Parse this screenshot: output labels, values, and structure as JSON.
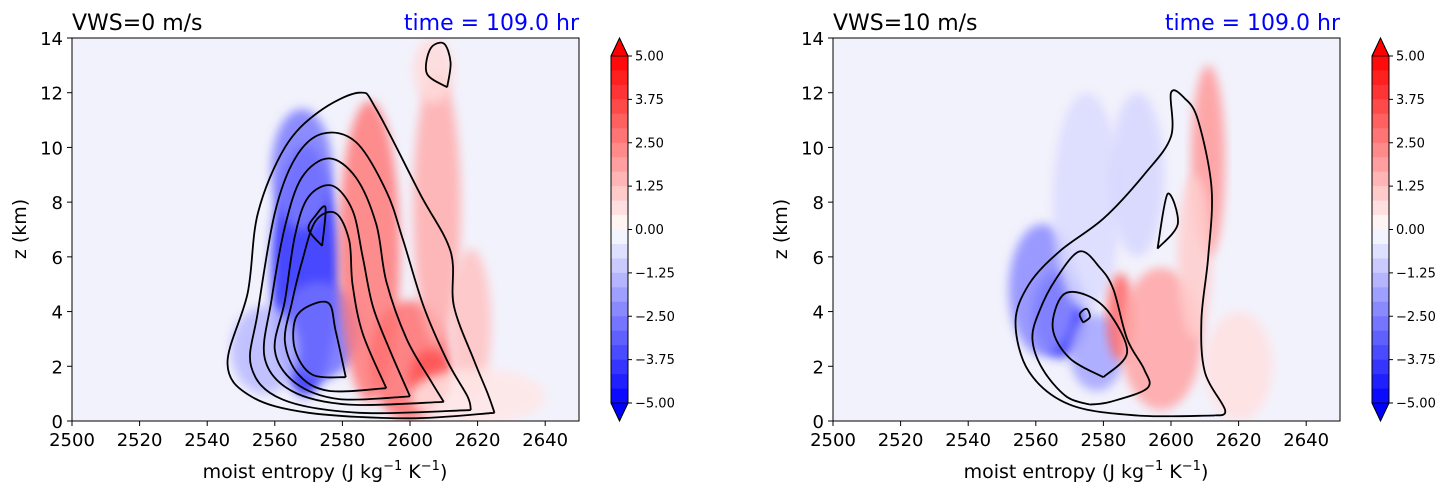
{
  "chart_data": [
    {
      "type": "contour",
      "title_left": "VWS=0 m/s",
      "title_right": "time = 109.0 hr",
      "xlabel": "moist entropy (J kg",
      "xlabel_unit_sup1": "−1",
      "xlabel_mid": " K",
      "xlabel_unit_sup2": "−1",
      "xlabel_end": ")",
      "ylabel": "z (km)",
      "xlim": [
        2500,
        2650
      ],
      "ylim": [
        0,
        14
      ],
      "xticks": [
        "2500",
        "2520",
        "2540",
        "2560",
        "2580",
        "2600",
        "2620",
        "2640"
      ],
      "yticks": [
        "0",
        "2",
        "4",
        "6",
        "8",
        "10",
        "12",
        "14"
      ],
      "colorbar_ticks": [
        "5.00",
        "3.75",
        "2.50",
        "1.25",
        "0.00",
        "−1.25",
        "−2.50",
        "−3.75",
        "−5.00"
      ],
      "colorbar_range": [
        -5,
        5
      ],
      "colormap": "bwr",
      "blobs": [
        {
          "x": 2569,
          "y": 5.5,
          "rx": 10,
          "ry": 4.6,
          "v": -4.2
        },
        {
          "x": 2573,
          "y": 3.3,
          "rx": 12,
          "ry": 1.8,
          "v": -2.8
        },
        {
          "x": 2568,
          "y": 9.2,
          "rx": 9,
          "ry": 2.2,
          "v": -2.6
        },
        {
          "x": 2557,
          "y": 2.6,
          "rx": 10,
          "ry": 1.6,
          "v": -1.4
        },
        {
          "x": 2588,
          "y": 6.2,
          "rx": 9,
          "ry": 5.5,
          "v": 2.6
        },
        {
          "x": 2600,
          "y": 2.2,
          "rx": 12,
          "ry": 2.2,
          "v": 2.8
        },
        {
          "x": 2606,
          "y": 1.6,
          "rx": 6,
          "ry": 1.0,
          "v": 3.4
        },
        {
          "x": 2608,
          "y": 7.8,
          "rx": 7,
          "ry": 5.0,
          "v": 1.6
        },
        {
          "x": 2618,
          "y": 3.5,
          "rx": 6,
          "ry": 2.8,
          "v": 1.2
        },
        {
          "x": 2607,
          "y": 12.8,
          "rx": 6,
          "ry": 1.2,
          "v": 0.7
        },
        {
          "x": 2620,
          "y": 0.9,
          "rx": 20,
          "ry": 1.0,
          "v": 0.5
        }
      ],
      "contours": [
        {
          "points": [
            [
              2625,
              0.3
            ],
            [
              2600,
              0.1
            ],
            [
              2570,
              0.3
            ],
            [
              2553,
              0.9
            ],
            [
              2546,
              2.1
            ],
            [
              2552,
              4.7
            ],
            [
              2555,
              7.6
            ],
            [
              2563,
              10.0
            ],
            [
              2573,
              11.3
            ],
            [
              2585,
              12.0
            ],
            [
              2590,
              11.4
            ],
            [
              2603,
              8.3
            ],
            [
              2612,
              6.2
            ],
            [
              2613,
              4.2
            ],
            [
              2619,
              2.2
            ],
            [
              2623,
              1.0
            ],
            [
              2625,
              0.3
            ]
          ]
        },
        {
          "points": [
            [
              2618,
              0.4
            ],
            [
              2585,
              0.3
            ],
            [
              2562,
              0.8
            ],
            [
              2553,
              2.0
            ],
            [
              2555,
              4.0
            ],
            [
              2560,
              7.6
            ],
            [
              2566,
              9.6
            ],
            [
              2574,
              10.5
            ],
            [
              2584,
              10.2
            ],
            [
              2593,
              8.4
            ],
            [
              2598,
              6.6
            ],
            [
              2604,
              4.2
            ],
            [
              2611,
              2.2
            ],
            [
              2617,
              0.9
            ],
            [
              2618,
              0.4
            ]
          ]
        },
        {
          "points": [
            [
              2610,
              0.7
            ],
            [
              2582,
              0.6
            ],
            [
              2565,
              1.1
            ],
            [
              2557,
              2.3
            ],
            [
              2559,
              4.4
            ],
            [
              2563,
              7.1
            ],
            [
              2568,
              8.9
            ],
            [
              2576,
              9.6
            ],
            [
              2584,
              8.9
            ],
            [
              2590,
              7.2
            ],
            [
              2593,
              5.1
            ],
            [
              2599,
              3.0
            ],
            [
              2606,
              1.5
            ],
            [
              2610,
              0.7
            ]
          ]
        },
        {
          "points": [
            [
              2600,
              0.9
            ],
            [
              2579,
              0.8
            ],
            [
              2566,
              1.4
            ],
            [
              2560,
              2.6
            ],
            [
              2563,
              4.4
            ],
            [
              2566,
              6.8
            ],
            [
              2570,
              8.2
            ],
            [
              2577,
              8.6
            ],
            [
              2583,
              7.7
            ],
            [
              2586,
              6.0
            ],
            [
              2589,
              4.2
            ],
            [
              2594,
              2.6
            ],
            [
              2600,
              0.9
            ]
          ]
        },
        {
          "points": [
            [
              2593,
              1.2
            ],
            [
              2576,
              1.1
            ],
            [
              2567,
              1.7
            ],
            [
              2563,
              2.9
            ],
            [
              2565,
              4.3
            ],
            [
              2568,
              5.8
            ],
            [
              2572,
              7.3
            ],
            [
              2578,
              7.6
            ],
            [
              2582,
              6.6
            ],
            [
              2583,
              5.0
            ],
            [
              2586,
              3.2
            ],
            [
              2593,
              1.2
            ]
          ]
        },
        {
          "points": [
            [
              2581,
              1.6
            ],
            [
              2571,
              1.7
            ],
            [
              2566,
              2.6
            ],
            [
              2566,
              3.7
            ],
            [
              2570,
              4.2
            ],
            [
              2576,
              4.3
            ],
            [
              2578,
              3.3
            ],
            [
              2581,
              1.6
            ]
          ]
        },
        {
          "points": [
            [
              2574,
              6.4
            ],
            [
              2575,
              7.8
            ],
            [
              2572,
              7.5
            ],
            [
              2570,
              7.0
            ],
            [
              2574,
              6.4
            ]
          ]
        },
        {
          "points": [
            [
              2611,
              12.2
            ],
            [
              2612,
              13.1
            ],
            [
              2610,
              13.8
            ],
            [
              2606,
              13.6
            ],
            [
              2605,
              12.7
            ],
            [
              2611,
              12.2
            ]
          ]
        }
      ]
    },
    {
      "type": "contour",
      "title_left": "VWS=10 m/s",
      "title_right": "time = 109.0 hr",
      "xlabel": "moist entropy (J kg",
      "xlabel_unit_sup1": "−1",
      "xlabel_mid": " K",
      "xlabel_unit_sup2": "−1",
      "xlabel_end": ")",
      "ylabel": "z (km)",
      "xlim": [
        2500,
        2650
      ],
      "ylim": [
        0,
        14
      ],
      "xticks": [
        "2500",
        "2520",
        "2540",
        "2560",
        "2580",
        "2600",
        "2620",
        "2640"
      ],
      "yticks": [
        "0",
        "2",
        "4",
        "6",
        "8",
        "10",
        "12",
        "14"
      ],
      "colorbar_ticks": [
        "5.00",
        "3.75",
        "2.50",
        "1.25",
        "0.00",
        "−1.25",
        "−2.50",
        "−3.75",
        "−5.00"
      ],
      "colorbar_range": [
        -5,
        5
      ],
      "colormap": "bwr",
      "blobs": [
        {
          "x": 2567,
          "y": 3.9,
          "rx": 8,
          "ry": 1.6,
          "v": -4.0
        },
        {
          "x": 2562,
          "y": 4.8,
          "rx": 10,
          "ry": 2.4,
          "v": -2.3
        },
        {
          "x": 2578,
          "y": 2.5,
          "rx": 8,
          "ry": 1.4,
          "v": -1.8
        },
        {
          "x": 2575,
          "y": 8.0,
          "rx": 10,
          "ry": 4.0,
          "v": -0.7
        },
        {
          "x": 2590,
          "y": 9.0,
          "rx": 8,
          "ry": 3.0,
          "v": -0.8
        },
        {
          "x": 2585,
          "y": 3.8,
          "rx": 4,
          "ry": 1.6,
          "v": 3.0
        },
        {
          "x": 2597,
          "y": 3.0,
          "rx": 12,
          "ry": 2.6,
          "v": 1.8
        },
        {
          "x": 2611,
          "y": 9.5,
          "rx": 5,
          "ry": 3.5,
          "v": 2.0
        },
        {
          "x": 2607,
          "y": 6.0,
          "rx": 5,
          "ry": 3.0,
          "v": 1.0
        },
        {
          "x": 2620,
          "y": 2.0,
          "rx": 10,
          "ry": 2.0,
          "v": 0.6
        }
      ],
      "contours": [
        {
          "points": [
            [
              2613,
              0.2
            ],
            [
              2590,
              0.2
            ],
            [
              2570,
              0.6
            ],
            [
              2558,
              1.8
            ],
            [
              2554,
              3.6
            ],
            [
              2558,
              5.0
            ],
            [
              2567,
              6.2
            ],
            [
              2580,
              7.4
            ],
            [
              2592,
              9.0
            ],
            [
              2600,
              10.4
            ],
            [
              2600,
              12.0
            ],
            [
              2604,
              11.8
            ],
            [
              2608,
              11.0
            ],
            [
              2612,
              8.5
            ],
            [
              2611,
              6.0
            ],
            [
              2609,
              3.7
            ],
            [
              2610,
              1.8
            ],
            [
              2616,
              0.4
            ],
            [
              2613,
              0.2
            ]
          ]
        },
        {
          "points": [
            [
              2576,
              0.6
            ],
            [
              2569,
              0.9
            ],
            [
              2562,
              1.9
            ],
            [
              2559,
              3.0
            ],
            [
              2561,
              4.0
            ],
            [
              2566,
              5.2
            ],
            [
              2573,
              6.2
            ],
            [
              2579,
              5.6
            ],
            [
              2583,
              4.8
            ],
            [
              2587,
              3.0
            ],
            [
              2592,
              1.9
            ],
            [
              2593,
              1.2
            ],
            [
              2582,
              0.7
            ],
            [
              2576,
              0.6
            ]
          ]
        },
        {
          "points": [
            [
              2580,
              1.6
            ],
            [
              2570,
              2.3
            ],
            [
              2565,
              3.4
            ],
            [
              2568,
              4.6
            ],
            [
              2575,
              4.6
            ],
            [
              2582,
              3.9
            ],
            [
              2587,
              2.5
            ],
            [
              2580,
              1.6
            ]
          ]
        },
        {
          "points": [
            [
              2574,
              3.6
            ],
            [
              2576,
              3.8
            ],
            [
              2575,
              4.1
            ],
            [
              2573,
              3.9
            ],
            [
              2574,
              3.6
            ]
          ]
        },
        {
          "points": [
            [
              2596,
              6.3
            ],
            [
              2602,
              7.2
            ],
            [
              2599,
              8.3
            ],
            [
              2596,
              6.3
            ]
          ]
        }
      ]
    }
  ]
}
